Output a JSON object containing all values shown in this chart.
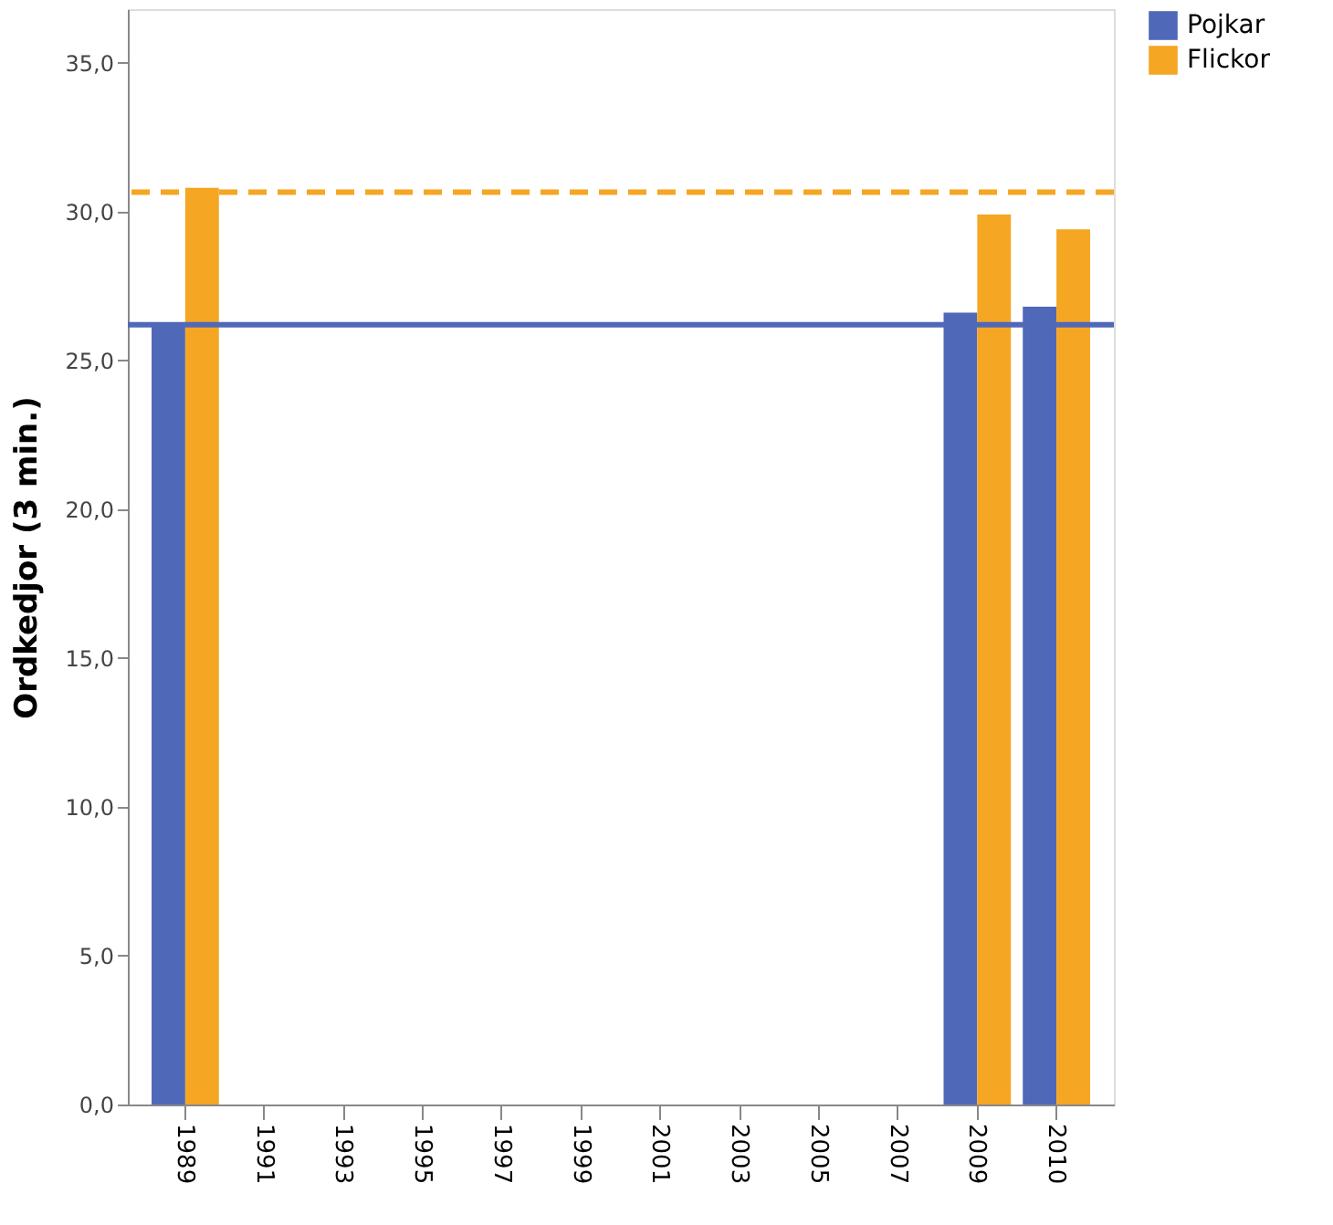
{
  "chart_data": {
    "type": "bar",
    "ylabel": "Ordkedjor  (3 min.)",
    "categories": [
      "1989",
      "1991",
      "1993",
      "1995",
      "1997",
      "1999",
      "2001",
      "2003",
      "2005",
      "2007",
      "2009",
      "2010"
    ],
    "series": [
      {
        "name": "Pojkar",
        "color": "#5068b8",
        "values": [
          26.2,
          null,
          null,
          null,
          null,
          null,
          null,
          null,
          null,
          null,
          26.6,
          26.8
        ]
      },
      {
        "name": "Flickor",
        "color": "#f5a623",
        "values": [
          30.8,
          null,
          null,
          null,
          null,
          null,
          null,
          null,
          null,
          null,
          29.9,
          29.4
        ]
      }
    ],
    "ylim": [
      0,
      36.8
    ],
    "yticks": [
      {
        "value": 0,
        "label": "0,0"
      },
      {
        "value": 5,
        "label": "5,0"
      },
      {
        "value": 10,
        "label": "10,0"
      },
      {
        "value": 15,
        "label": "15,0"
      },
      {
        "value": 20,
        "label": "20,0"
      },
      {
        "value": 25,
        "label": "25,0"
      },
      {
        "value": 30,
        "label": "30,0"
      },
      {
        "value": 35,
        "label": "35,0"
      }
    ],
    "ref_lines": [
      {
        "axis": "y",
        "value": 30.65,
        "color": "#f5a623",
        "line_style": "dashed"
      },
      {
        "axis": "y",
        "value": 26.2,
        "color": "#5068b8",
        "line_style": "solid"
      }
    ],
    "grid": false,
    "legend": "top right"
  }
}
